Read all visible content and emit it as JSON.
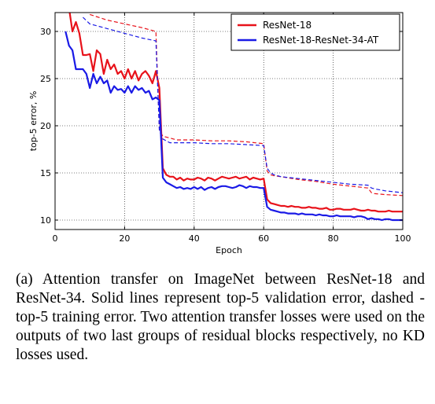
{
  "caption": "(a) Attention transfer on ImageNet between ResNet-18 and ResNet-34. Solid lines represent top-5 validation error, dashed - top-5 training error. Two attention transfer losses were used on the outputs of two last groups of residual blocks respectively, no KD losses used.",
  "chart_data": {
    "type": "line",
    "xlabel": "Epoch",
    "ylabel": "top-5 error, %",
    "xlim": [
      0,
      100
    ],
    "ylim": [
      9,
      32
    ],
    "xticks": [
      0,
      20,
      40,
      60,
      80,
      100
    ],
    "yticks": [
      10,
      15,
      20,
      25,
      30
    ],
    "grid": true,
    "legend_position": "top-right",
    "legend": [
      "ResNet-18",
      "ResNet-18-ResNet-34-AT"
    ],
    "series": [
      {
        "name": "ResNet-18",
        "kind": "validation",
        "style": "solid",
        "color": "#e8121a",
        "x": [
          3,
          4,
          5,
          6,
          7,
          8,
          9,
          10,
          11,
          12,
          13,
          14,
          15,
          16,
          17,
          18,
          19,
          20,
          21,
          22,
          23,
          24,
          25,
          26,
          27,
          28,
          29,
          30,
          31,
          32,
          33,
          34,
          35,
          36,
          37,
          38,
          39,
          40,
          41,
          42,
          43,
          44,
          45,
          46,
          47,
          48,
          49,
          50,
          51,
          52,
          53,
          54,
          55,
          56,
          57,
          58,
          59,
          60,
          61,
          62,
          63,
          64,
          65,
          66,
          67,
          68,
          69,
          70,
          71,
          72,
          73,
          74,
          75,
          76,
          77,
          78,
          79,
          80,
          81,
          82,
          83,
          84,
          85,
          86,
          87,
          88,
          89,
          90,
          91,
          92,
          93,
          94,
          95,
          96,
          97,
          98,
          99,
          100
        ],
        "y": [
          32,
          32.5,
          30,
          31,
          29.8,
          27.5,
          27.5,
          27.6,
          25.8,
          28,
          27.6,
          25.5,
          27,
          26,
          26.5,
          25.5,
          25.8,
          25,
          26,
          25,
          25.8,
          24.8,
          25.5,
          25.8,
          25.3,
          24.5,
          25.8,
          24,
          15.5,
          14.8,
          14.6,
          14.6,
          14.3,
          14.5,
          14.2,
          14.4,
          14.3,
          14.3,
          14.5,
          14.4,
          14.2,
          14.5,
          14.4,
          14.2,
          14.4,
          14.6,
          14.5,
          14.4,
          14.5,
          14.6,
          14.4,
          14.5,
          14.6,
          14.3,
          14.5,
          14.4,
          14.3,
          14.4,
          12.2,
          11.8,
          11.7,
          11.6,
          11.5,
          11.5,
          11.4,
          11.5,
          11.4,
          11.4,
          11.3,
          11.3,
          11.4,
          11.3,
          11.3,
          11.2,
          11.2,
          11.3,
          11.1,
          11.1,
          11.2,
          11.2,
          11.1,
          11.1,
          11.1,
          11.2,
          11.1,
          11.0,
          11.0,
          11.1,
          11.0,
          11.0,
          10.9,
          10.9,
          10.9,
          11.0,
          10.9,
          10.9,
          10.9,
          10.9
        ]
      },
      {
        "name": "ResNet-18",
        "kind": "training",
        "style": "dashed",
        "color": "#e8121a",
        "x": [
          10,
          15,
          20,
          25,
          29,
          30,
          31,
          32,
          33,
          34,
          35,
          38,
          40,
          45,
          50,
          55,
          60,
          61,
          62,
          63,
          65,
          70,
          75,
          80,
          85,
          90,
          91,
          92,
          95,
          100
        ],
        "y": [
          31.8,
          31.2,
          30.8,
          30.4,
          30,
          19.5,
          18.9,
          18.8,
          18.7,
          18.6,
          18.5,
          18.5,
          18.5,
          18.4,
          18.4,
          18.3,
          18.1,
          15.2,
          14.8,
          14.7,
          14.6,
          14.3,
          14.1,
          13.8,
          13.6,
          13.4,
          12.9,
          12.8,
          12.7,
          12.6
        ]
      },
      {
        "name": "ResNet-18-ResNet-34-AT",
        "kind": "validation",
        "style": "solid",
        "color": "#1a1ae6",
        "x": [
          3,
          4,
          5,
          6,
          7,
          8,
          9,
          10,
          11,
          12,
          13,
          14,
          15,
          16,
          17,
          18,
          19,
          20,
          21,
          22,
          23,
          24,
          25,
          26,
          27,
          28,
          29,
          30,
          31,
          32,
          33,
          34,
          35,
          36,
          37,
          38,
          39,
          40,
          41,
          42,
          43,
          44,
          45,
          46,
          47,
          48,
          49,
          50,
          51,
          52,
          53,
          54,
          55,
          56,
          57,
          58,
          59,
          60,
          61,
          62,
          63,
          64,
          65,
          66,
          67,
          68,
          69,
          70,
          71,
          72,
          73,
          74,
          75,
          76,
          77,
          78,
          79,
          80,
          81,
          82,
          83,
          84,
          85,
          86,
          87,
          88,
          89,
          90,
          91,
          92,
          93,
          94,
          95,
          96,
          97,
          98,
          99,
          100
        ],
        "y": [
          30,
          28.5,
          28,
          26,
          26,
          26,
          25.5,
          24,
          25.5,
          24.5,
          25.2,
          24.5,
          24.8,
          23.5,
          24.2,
          23.8,
          23.9,
          23.5,
          24.2,
          23.5,
          24.2,
          23.8,
          24,
          23.5,
          23.7,
          22.8,
          23,
          22.7,
          14.5,
          14,
          13.8,
          13.6,
          13.4,
          13.5,
          13.3,
          13.4,
          13.3,
          13.5,
          13.3,
          13.5,
          13.2,
          13.4,
          13.5,
          13.3,
          13.5,
          13.6,
          13.6,
          13.5,
          13.4,
          13.5,
          13.7,
          13.6,
          13.4,
          13.6,
          13.5,
          13.5,
          13.4,
          13.4,
          11.4,
          11.1,
          11.0,
          10.9,
          10.8,
          10.8,
          10.7,
          10.7,
          10.7,
          10.6,
          10.7,
          10.6,
          10.6,
          10.6,
          10.5,
          10.6,
          10.5,
          10.5,
          10.4,
          10.4,
          10.5,
          10.4,
          10.4,
          10.4,
          10.4,
          10.3,
          10.4,
          10.4,
          10.3,
          10.1,
          10.2,
          10.1,
          10.1,
          10.0,
          10.1,
          10.1,
          10.0,
          10.0,
          10.0,
          10.0
        ]
      },
      {
        "name": "ResNet-18-ResNet-34-AT",
        "kind": "training",
        "style": "dashed",
        "color": "#1a1ae6",
        "x": [
          8,
          10,
          15,
          20,
          25,
          29,
          30,
          31,
          32,
          33,
          34,
          35,
          38,
          40,
          45,
          50,
          55,
          60,
          61,
          62,
          63,
          65,
          70,
          75,
          80,
          85,
          90,
          91,
          92,
          95,
          100
        ],
        "y": [
          31.5,
          30.8,
          30.3,
          29.8,
          29.3,
          29,
          19.5,
          18.6,
          18.4,
          18.2,
          18.2,
          18.2,
          18.2,
          18.2,
          18.1,
          18.1,
          18.0,
          17.9,
          15.5,
          15.0,
          14.8,
          14.6,
          14.4,
          14.2,
          14.0,
          13.8,
          13.7,
          13.4,
          13.3,
          13.1,
          12.9
        ]
      }
    ]
  }
}
